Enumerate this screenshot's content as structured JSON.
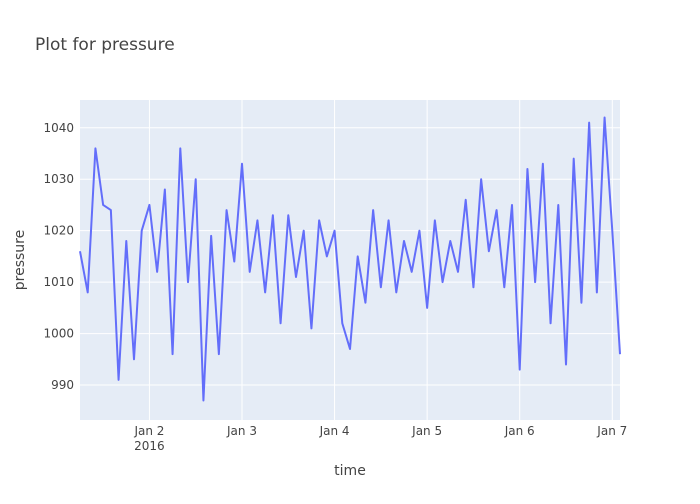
{
  "chart_data": {
    "type": "line",
    "title": "Plot for pressure",
    "x_label": "time",
    "y_label": "pressure",
    "x": [
      "2016-01-01T06:00",
      "2016-01-01T08:00",
      "2016-01-01T10:00",
      "2016-01-01T12:00",
      "2016-01-01T14:00",
      "2016-01-01T16:00",
      "2016-01-01T18:00",
      "2016-01-01T20:00",
      "2016-01-01T22:00",
      "2016-01-02T00:00",
      "2016-01-02T02:00",
      "2016-01-02T04:00",
      "2016-01-02T06:00",
      "2016-01-02T08:00",
      "2016-01-02T10:00",
      "2016-01-02T12:00",
      "2016-01-02T14:00",
      "2016-01-02T16:00",
      "2016-01-02T18:00",
      "2016-01-02T20:00",
      "2016-01-02T22:00",
      "2016-01-03T00:00",
      "2016-01-03T02:00",
      "2016-01-03T04:00",
      "2016-01-03T06:00",
      "2016-01-03T08:00",
      "2016-01-03T10:00",
      "2016-01-03T12:00",
      "2016-01-03T14:00",
      "2016-01-03T16:00",
      "2016-01-03T18:00",
      "2016-01-03T20:00",
      "2016-01-03T22:00",
      "2016-01-04T00:00",
      "2016-01-04T02:00",
      "2016-01-04T04:00",
      "2016-01-04T06:00",
      "2016-01-04T08:00",
      "2016-01-04T10:00",
      "2016-01-04T12:00",
      "2016-01-04T14:00",
      "2016-01-04T16:00",
      "2016-01-04T18:00",
      "2016-01-04T20:00",
      "2016-01-04T22:00",
      "2016-01-05T00:00",
      "2016-01-05T02:00",
      "2016-01-05T04:00",
      "2016-01-05T06:00",
      "2016-01-05T08:00",
      "2016-01-05T10:00",
      "2016-01-05T12:00",
      "2016-01-05T14:00",
      "2016-01-05T16:00",
      "2016-01-05T18:00",
      "2016-01-05T20:00",
      "2016-01-05T22:00",
      "2016-01-06T00:00",
      "2016-01-06T02:00",
      "2016-01-06T04:00",
      "2016-01-06T06:00",
      "2016-01-06T08:00",
      "2016-01-06T10:00",
      "2016-01-06T12:00",
      "2016-01-06T14:00",
      "2016-01-06T16:00",
      "2016-01-06T18:00",
      "2016-01-06T20:00",
      "2016-01-06T22:00",
      "2016-01-07T00:00",
      "2016-01-07T02:00"
    ],
    "series": [
      {
        "name": "pressure",
        "color": "#636efa",
        "values": [
          1016,
          1008,
          1036,
          1025,
          1024,
          991,
          1018,
          995,
          1020,
          1025,
          1012,
          1028,
          996,
          1036,
          1010,
          1030,
          987,
          1019,
          996,
          1024,
          1014,
          1033,
          1012,
          1022,
          1008,
          1023,
          1002,
          1023,
          1011,
          1020,
          1001,
          1022,
          1015,
          1020,
          1002,
          997,
          1015,
          1006,
          1024,
          1009,
          1022,
          1008,
          1018,
          1012,
          1020,
          1005,
          1022,
          1010,
          1018,
          1012,
          1026,
          1009,
          1030,
          1016,
          1024,
          1009,
          1025,
          993,
          1032,
          1010,
          1033,
          1002,
          1025,
          994,
          1034,
          1006,
          1041,
          1008,
          1042,
          1020,
          996
        ]
      }
    ],
    "xlim": [
      "2016-01-01T06:00",
      "2016-01-07T02:00"
    ],
    "xticks": [
      {
        "value": "2016-01-02T00:00",
        "label": "Jan 2\n2016"
      },
      {
        "value": "2016-01-03T00:00",
        "label": "Jan 3"
      },
      {
        "value": "2016-01-04T00:00",
        "label": "Jan 4"
      },
      {
        "value": "2016-01-05T00:00",
        "label": "Jan 5"
      },
      {
        "value": "2016-01-06T00:00",
        "label": "Jan 6"
      },
      {
        "value": "2016-01-07T00:00",
        "label": "Jan 7"
      }
    ],
    "ylim": [
      983.2,
      1045.4
    ],
    "yticks": [
      990,
      1000,
      1010,
      1020,
      1030,
      1040
    ],
    "grid": true,
    "background": "#e5ecf6"
  }
}
